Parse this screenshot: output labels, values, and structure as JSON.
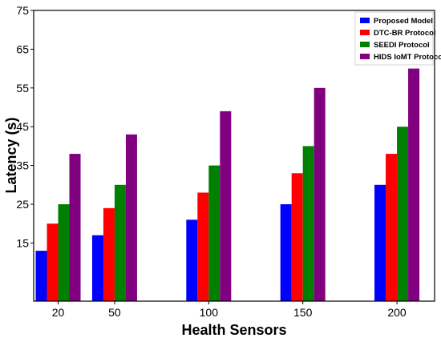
{
  "chart_data": {
    "type": "bar",
    "xlabel": "Health Sensors",
    "ylabel": "Latency (s)",
    "x": [
      20,
      50,
      100,
      150,
      200
    ],
    "categories": [
      "20",
      "50",
      "100",
      "150",
      "200"
    ],
    "ylim": [
      0,
      75
    ],
    "yticks": [
      15,
      25,
      35,
      45,
      55,
      65,
      75
    ],
    "grid": false,
    "legend_position": "top-right",
    "series": [
      {
        "name": "Proposed Model",
        "color": "#0000ff",
        "values": [
          13,
          17,
          21,
          25,
          30
        ]
      },
      {
        "name": "DTC-BR Protocol",
        "color": "#ff0000",
        "values": [
          20,
          24,
          28,
          33,
          38
        ]
      },
      {
        "name": "SEEDI Protocol",
        "color": "#007f00",
        "values": [
          25,
          30,
          35,
          40,
          45
        ]
      },
      {
        "name": "HIDS IoMT Protocol",
        "color": "#800080",
        "values": [
          38,
          43,
          49,
          55,
          60
        ]
      }
    ]
  }
}
